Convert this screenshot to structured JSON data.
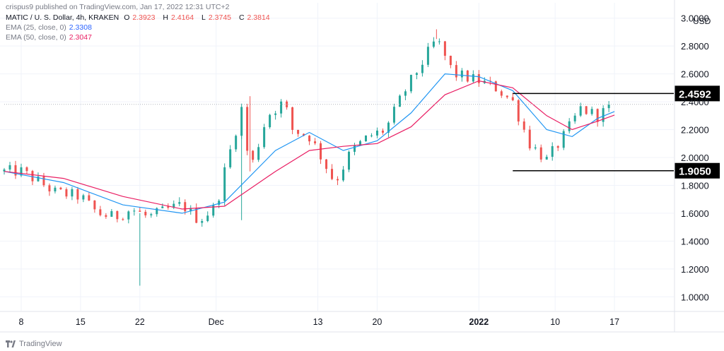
{
  "header": {
    "publisher": "crispus9 published on TradingView.com, Jan 17, 2022 12:31 UTC+2",
    "symbol": "MATIC / U. S. Dollar, 4h, KRAKEN",
    "ohlc": {
      "o_label": "O",
      "o": "2.3923",
      "h_label": "H",
      "h": "2.4164",
      "l_label": "L",
      "l": "2.3745",
      "c_label": "C",
      "c": "2.3814"
    },
    "ema25": {
      "label": "EMA (25, close, 0)",
      "value": "2.3308"
    },
    "ema50": {
      "label": "EMA (50, close, 0)",
      "value": "2.3047"
    }
  },
  "footer": {
    "brand": "TradingView"
  },
  "colors": {
    "up": "#26a69a",
    "down": "#ef5350",
    "ema25": "#2196f3",
    "ema50": "#e91e63",
    "grid": "#f0f3fa",
    "marker": "#000000"
  },
  "chart_data": {
    "type": "candlestick",
    "currency": "USD",
    "y_ticks": [
      "3.0000",
      "2.8000",
      "2.6000",
      "2.4000",
      "2.2000",
      "2.0000",
      "1.8000",
      "1.6000",
      "1.4000",
      "1.2000",
      "1.0000"
    ],
    "y_range": [
      0.9,
      3.11
    ],
    "x_labels": [
      "8",
      "15",
      "22",
      "Dec",
      "13",
      "20",
      "2022",
      "10",
      "17"
    ],
    "x_start": "2021-11-06",
    "x_end": "2022-01-24",
    "x_ticks": [
      "2021-11-08",
      "2021-11-15",
      "2021-11-22",
      "2021-12-01",
      "2021-12-13",
      "2021-12-20",
      "2022-01-01",
      "2022-01-10",
      "2022-01-17"
    ],
    "last_price": 2.3814,
    "levels": [
      {
        "label": "2.4592",
        "value": 2.4592,
        "from": "2022-01-05"
      },
      {
        "label": "1.9050",
        "value": 1.905,
        "from": "2022-01-05"
      }
    ],
    "price_path": [
      [
        "2021-11-06",
        1.9
      ],
      [
        "2021-11-08",
        1.9
      ],
      [
        "2021-11-10",
        1.83
      ],
      [
        "2021-11-12",
        1.75
      ],
      [
        "2021-11-15",
        1.72
      ],
      [
        "2021-11-17",
        1.6
      ],
      [
        "2021-11-19",
        1.57
      ],
      [
        "2021-11-21",
        1.63
      ],
      [
        "2021-11-23",
        1.57
      ],
      [
        "2021-11-25",
        1.62
      ],
      [
        "2021-11-27",
        1.66
      ],
      [
        "2021-11-29",
        1.55
      ],
      [
        "2021-12-01",
        1.65
      ],
      [
        "2021-12-02",
        1.9
      ],
      [
        "2021-12-04",
        2.35
      ],
      [
        "2021-12-05",
        1.9
      ],
      [
        "2021-12-07",
        2.3
      ],
      [
        "2021-12-09",
        2.4
      ],
      [
        "2021-12-10",
        2.2
      ],
      [
        "2021-12-12",
        2.15
      ],
      [
        "2021-12-13",
        2.05
      ],
      [
        "2021-12-15",
        1.82
      ],
      [
        "2021-12-17",
        2.05
      ],
      [
        "2021-12-19",
        2.15
      ],
      [
        "2021-12-21",
        2.2
      ],
      [
        "2021-12-23",
        2.45
      ],
      [
        "2021-12-25",
        2.65
      ],
      [
        "2021-12-27",
        2.85
      ],
      [
        "2021-12-29",
        2.6
      ],
      [
        "2022-01-01",
        2.55
      ],
      [
        "2022-01-03",
        2.5
      ],
      [
        "2022-01-05",
        2.4
      ],
      [
        "2022-01-07",
        2.1
      ],
      [
        "2022-01-09",
        1.98
      ],
      [
        "2022-01-11",
        2.15
      ],
      [
        "2022-01-13",
        2.35
      ],
      [
        "2022-01-15",
        2.3
      ],
      [
        "2022-01-17",
        2.38
      ]
    ],
    "ema25_path": [
      [
        "2021-11-06",
        1.9
      ],
      [
        "2021-11-13",
        1.82
      ],
      [
        "2021-11-20",
        1.66
      ],
      [
        "2021-11-27",
        1.6
      ],
      [
        "2021-12-02",
        1.68
      ],
      [
        "2021-12-08",
        2.05
      ],
      [
        "2021-12-12",
        2.18
      ],
      [
        "2021-12-16",
        2.05
      ],
      [
        "2021-12-20",
        2.12
      ],
      [
        "2021-12-24",
        2.32
      ],
      [
        "2021-12-28",
        2.6
      ],
      [
        "2022-01-01",
        2.58
      ],
      [
        "2022-01-05",
        2.48
      ],
      [
        "2022-01-09",
        2.2
      ],
      [
        "2022-01-12",
        2.15
      ],
      [
        "2022-01-15",
        2.28
      ],
      [
        "2022-01-17",
        2.33
      ]
    ],
    "ema50_path": [
      [
        "2021-11-06",
        1.9
      ],
      [
        "2021-11-13",
        1.85
      ],
      [
        "2021-11-20",
        1.72
      ],
      [
        "2021-11-27",
        1.63
      ],
      [
        "2021-12-02",
        1.65
      ],
      [
        "2021-12-08",
        1.9
      ],
      [
        "2021-12-12",
        2.05
      ],
      [
        "2021-12-16",
        2.08
      ],
      [
        "2021-12-20",
        2.1
      ],
      [
        "2021-12-24",
        2.22
      ],
      [
        "2021-12-28",
        2.45
      ],
      [
        "2022-01-01",
        2.55
      ],
      [
        "2022-01-05",
        2.5
      ],
      [
        "2022-01-09",
        2.3
      ],
      [
        "2022-01-12",
        2.2
      ],
      [
        "2022-01-15",
        2.26
      ],
      [
        "2022-01-17",
        2.3047
      ]
    ],
    "candle_step_days": 0.6667,
    "spikes": [
      {
        "date": "2021-11-22",
        "low": 1.08
      },
      {
        "date": "2021-12-04",
        "low": 1.55
      },
      {
        "date": "2021-12-27",
        "high": 2.92
      },
      {
        "date": "2021-12-05",
        "high": 2.44
      }
    ]
  }
}
